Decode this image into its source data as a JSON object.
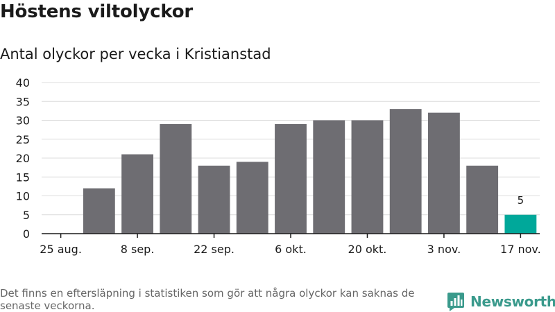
{
  "title": "Höstens viltolyckor",
  "subtitle": "Antal olyckor per vecka i Kristianstad",
  "footnote": "Det finns en eftersläpning i statistiken som gör att några olyckor kan saknas de senaste veckorna.",
  "brand": {
    "name": "Newsworthy",
    "color": "#3a9a8c"
  },
  "chart_data": {
    "type": "bar",
    "title": "Höstens viltolyckor",
    "subtitle": "Antal olyckor per vecka i Kristianstad",
    "xlabel": "",
    "ylabel": "",
    "categories": [
      "25 aug.",
      "1 sep.",
      "8 sep.",
      "15 sep.",
      "22 sep.",
      "29 sep.",
      "6 okt.",
      "13 okt.",
      "20 okt.",
      "27 okt.",
      "3 nov.",
      "10 nov.",
      "17 nov."
    ],
    "values": [
      null,
      12,
      21,
      29,
      18,
      19,
      29,
      30,
      30,
      33,
      32,
      18,
      5
    ],
    "x_tick_labels": [
      "25 aug.",
      "8 sep.",
      "22 sep.",
      "6 okt.",
      "20 okt.",
      "3 nov.",
      "17 nov."
    ],
    "y_ticks": [
      0,
      5,
      10,
      15,
      20,
      25,
      30,
      35,
      40
    ],
    "ylim": [
      0,
      40
    ],
    "grid": true,
    "bar_color": "#6e6d72",
    "highlight_color": "#00a89a",
    "highlight_index": 12,
    "data_labels": [
      {
        "index": 12,
        "text": "5"
      }
    ]
  }
}
